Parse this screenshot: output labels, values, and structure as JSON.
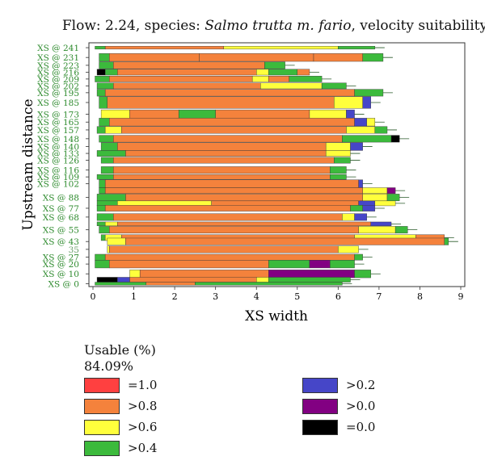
{
  "chart_data": {
    "type": "bar",
    "title_prefix": "Flow: 2.24, species: ",
    "title_species": "Salmo trutta m. fario",
    "title_suffix": ", velocity suitability",
    "xlabel": "XS width",
    "ylabel": "Upstream distance",
    "xlim": [
      0,
      9
    ],
    "x_ticks": [
      "0",
      "1",
      "2",
      "3",
      "4",
      "5",
      "6",
      "7",
      "8",
      "9"
    ],
    "y_tick_labels": [
      "XS @ 241",
      "XS @ 231",
      "XS @ 223",
      "XS @ 216",
      "XS @ 209",
      "XS @ 202",
      "XS @ 195",
      "XS @ 185",
      "XS @ 173",
      "XS @ 165",
      "XS @ 157",
      "XS @ 148",
      "XS @ 140",
      "XS @ 133",
      "XS @ 126",
      "XS @ 116",
      "XS @ 109",
      "XS @ 102",
      "XS @ 88",
      "XS @ 77",
      "XS @ 68",
      "XS @ 55",
      "XS @ 43",
      "35",
      "XS @ 27",
      "XS @ 20",
      "XS @ 10",
      "XS @ 0"
    ],
    "y_tick_values": [
      241,
      231,
      223,
      216,
      209,
      202,
      195,
      185,
      173,
      165,
      157,
      148,
      140,
      133,
      126,
      116,
      109,
      102,
      88,
      77,
      68,
      55,
      43,
      35,
      27,
      20,
      10,
      0
    ],
    "ylim": [
      -3,
      246
    ],
    "cross_sections": [
      {
        "y": 241,
        "h": 3,
        "segments": [
          [
            0.05,
            0.3,
            "green"
          ],
          [
            0.3,
            3.2,
            "orange"
          ],
          [
            3.2,
            6.0,
            "yellow"
          ],
          [
            6.0,
            6.9,
            "green"
          ]
        ]
      },
      {
        "y": 231,
        "h": 8,
        "segments": [
          [
            0.15,
            0.4,
            "green"
          ],
          [
            0.4,
            2.6,
            "orange"
          ],
          [
            2.6,
            5.4,
            "orange"
          ],
          [
            5.4,
            6.6,
            "orange"
          ],
          [
            6.6,
            7.1,
            "green"
          ]
        ]
      },
      {
        "y": 223,
        "h": 7,
        "segments": [
          [
            0.15,
            0.5,
            "green"
          ],
          [
            0.5,
            4.2,
            "orange"
          ],
          [
            4.2,
            4.7,
            "green"
          ]
        ]
      },
      {
        "y": 216,
        "h": 6,
        "segments": [
          [
            0.1,
            0.3,
            "black"
          ],
          [
            0.3,
            0.6,
            "green"
          ],
          [
            0.6,
            4.0,
            "orange"
          ],
          [
            4.0,
            4.3,
            "yellow"
          ],
          [
            4.3,
            5.0,
            "green"
          ],
          [
            5.0,
            5.3,
            "orange"
          ]
        ]
      },
      {
        "y": 209,
        "h": 6,
        "segments": [
          [
            0.05,
            0.4,
            "green"
          ],
          [
            0.4,
            3.9,
            "orange"
          ],
          [
            3.9,
            4.3,
            "yellow"
          ],
          [
            4.3,
            4.8,
            "orange"
          ],
          [
            4.8,
            5.6,
            "green"
          ]
        ]
      },
      {
        "y": 202,
        "h": 6,
        "segments": [
          [
            0.1,
            0.5,
            "green"
          ],
          [
            0.5,
            4.1,
            "orange"
          ],
          [
            4.1,
            5.6,
            "yellow"
          ],
          [
            5.6,
            6.2,
            "green"
          ]
        ]
      },
      {
        "y": 195,
        "h": 7,
        "segments": [
          [
            0.1,
            0.3,
            "green"
          ],
          [
            0.3,
            6.4,
            "orange"
          ],
          [
            6.4,
            7.1,
            "green"
          ]
        ]
      },
      {
        "y": 185,
        "h": 12,
        "segments": [
          [
            0.15,
            0.35,
            "green"
          ],
          [
            0.35,
            5.9,
            "orange"
          ],
          [
            5.9,
            6.6,
            "yellow"
          ],
          [
            6.6,
            6.8,
            "blue"
          ]
        ]
      },
      {
        "y": 173,
        "h": 9,
        "segments": [
          [
            0.2,
            0.9,
            "yellow"
          ],
          [
            0.9,
            2.1,
            "orange"
          ],
          [
            2.1,
            3.0,
            "green"
          ],
          [
            3.0,
            5.3,
            "orange"
          ],
          [
            5.3,
            6.2,
            "yellow"
          ],
          [
            6.2,
            6.4,
            "blue"
          ]
        ]
      },
      {
        "y": 165,
        "h": 8,
        "segments": [
          [
            0.15,
            0.4,
            "green"
          ],
          [
            0.4,
            6.4,
            "orange"
          ],
          [
            6.4,
            6.7,
            "blue"
          ],
          [
            6.7,
            6.9,
            "yellow"
          ]
        ]
      },
      {
        "y": 157,
        "h": 7,
        "segments": [
          [
            0.1,
            0.3,
            "green"
          ],
          [
            0.3,
            0.7,
            "yellow"
          ],
          [
            0.7,
            6.2,
            "orange"
          ],
          [
            6.2,
            6.9,
            "yellow"
          ],
          [
            6.9,
            7.2,
            "green"
          ]
        ]
      },
      {
        "y": 148,
        "h": 7,
        "segments": [
          [
            0.15,
            0.5,
            "green"
          ],
          [
            0.5,
            6.1,
            "orange"
          ],
          [
            6.1,
            7.3,
            "green"
          ],
          [
            7.3,
            7.5,
            "black"
          ]
        ]
      },
      {
        "y": 140,
        "h": 8,
        "segments": [
          [
            0.2,
            0.6,
            "green"
          ],
          [
            0.6,
            5.7,
            "orange"
          ],
          [
            5.7,
            6.3,
            "yellow"
          ],
          [
            6.3,
            6.6,
            "blue"
          ]
        ]
      },
      {
        "y": 133,
        "h": 6,
        "segments": [
          [
            0.1,
            0.8,
            "green"
          ],
          [
            0.8,
            5.7,
            "orange"
          ],
          [
            5.7,
            6.3,
            "yellow"
          ]
        ]
      },
      {
        "y": 126,
        "h": 6,
        "segments": [
          [
            0.2,
            0.5,
            "green"
          ],
          [
            0.5,
            5.9,
            "orange"
          ],
          [
            5.9,
            6.3,
            "green"
          ]
        ]
      },
      {
        "y": 116,
        "h": 7,
        "segments": [
          [
            0.2,
            0.5,
            "green"
          ],
          [
            0.5,
            5.8,
            "orange"
          ],
          [
            5.8,
            6.2,
            "green"
          ]
        ]
      },
      {
        "y": 109,
        "h": 5,
        "segments": [
          [
            0.1,
            0.5,
            "green"
          ],
          [
            0.5,
            5.8,
            "orange"
          ],
          [
            5.8,
            6.2,
            "green"
          ]
        ]
      },
      {
        "y": 102,
        "h": 8,
        "segments": [
          [
            0.15,
            0.3,
            "green"
          ],
          [
            0.3,
            6.5,
            "orange"
          ],
          [
            6.5,
            6.6,
            "blue"
          ]
        ]
      },
      {
        "y": 95,
        "h": 6,
        "segments": [
          [
            0.15,
            0.3,
            "green"
          ],
          [
            0.3,
            6.6,
            "orange"
          ],
          [
            6.6,
            7.2,
            "yellow"
          ],
          [
            7.2,
            7.4,
            "purple"
          ]
        ]
      },
      {
        "y": 88,
        "h": 7,
        "segments": [
          [
            0.1,
            0.8,
            "green"
          ],
          [
            0.8,
            6.6,
            "orange"
          ],
          [
            6.6,
            7.2,
            "yellow"
          ],
          [
            7.2,
            7.5,
            "green"
          ]
        ]
      },
      {
        "y": 82,
        "h": 5,
        "segments": [
          [
            0.1,
            0.6,
            "green"
          ],
          [
            0.6,
            2.9,
            "yellow"
          ],
          [
            2.9,
            6.5,
            "orange"
          ],
          [
            6.5,
            6.9,
            "blue"
          ],
          [
            6.9,
            7.4,
            "yellow"
          ]
        ]
      },
      {
        "y": 77,
        "h": 6,
        "segments": [
          [
            0.1,
            0.3,
            "green"
          ],
          [
            0.3,
            6.3,
            "orange"
          ],
          [
            6.3,
            6.6,
            "green"
          ],
          [
            6.6,
            6.9,
            "blue"
          ]
        ]
      },
      {
        "y": 68,
        "h": 7,
        "segments": [
          [
            0.1,
            0.5,
            "green"
          ],
          [
            0.5,
            6.1,
            "orange"
          ],
          [
            6.1,
            6.4,
            "yellow"
          ],
          [
            6.4,
            6.7,
            "blue"
          ]
        ]
      },
      {
        "y": 61,
        "h": 4,
        "segments": [
          [
            0.1,
            0.3,
            "green"
          ],
          [
            0.3,
            0.6,
            "yellow"
          ],
          [
            0.6,
            6.8,
            "orange"
          ],
          [
            6.8,
            7.3,
            "blue"
          ]
        ]
      },
      {
        "y": 55,
        "h": 7,
        "segments": [
          [
            0.15,
            0.4,
            "green"
          ],
          [
            0.4,
            6.5,
            "orange"
          ],
          [
            6.5,
            7.4,
            "yellow"
          ],
          [
            7.4,
            7.7,
            "green"
          ]
        ]
      },
      {
        "y": 47,
        "h": 6,
        "segments": [
          [
            0.2,
            0.3,
            "green"
          ],
          [
            0.3,
            0.7,
            "yellow"
          ],
          [
            0.7,
            6.4,
            "orange"
          ],
          [
            6.4,
            7.9,
            "yellow"
          ],
          [
            7.9,
            8.6,
            "orange"
          ]
        ]
      },
      {
        "y": 43,
        "h": 7,
        "segments": [
          [
            0.35,
            0.8,
            "yellow"
          ],
          [
            0.8,
            8.6,
            "orange"
          ],
          [
            8.6,
            8.7,
            "green"
          ]
        ]
      },
      {
        "y": 35,
        "h": 7,
        "segments": [
          [
            0.35,
            0.4,
            "yellow"
          ],
          [
            0.4,
            6.0,
            "orange"
          ],
          [
            6.0,
            6.5,
            "yellow"
          ]
        ]
      },
      {
        "y": 27,
        "h": 6,
        "segments": [
          [
            0.05,
            0.3,
            "green"
          ],
          [
            0.3,
            6.4,
            "orange"
          ],
          [
            6.4,
            6.6,
            "green"
          ]
        ]
      },
      {
        "y": 20,
        "h": 8,
        "segments": [
          [
            0.05,
            0.4,
            "green"
          ],
          [
            0.4,
            4.3,
            "orange"
          ],
          [
            4.3,
            5.3,
            "green"
          ],
          [
            5.3,
            5.8,
            "purple"
          ],
          [
            5.8,
            6.4,
            "green"
          ]
        ]
      },
      {
        "y": 10,
        "h": 8,
        "segments": [
          [
            0.9,
            1.15,
            "yellow"
          ],
          [
            1.15,
            4.3,
            "orange"
          ],
          [
            4.3,
            6.4,
            "purple"
          ],
          [
            6.4,
            6.8,
            "green"
          ]
        ]
      },
      {
        "y": 4,
        "h": 5,
        "segments": [
          [
            0.1,
            0.6,
            "black"
          ],
          [
            0.6,
            0.9,
            "blue"
          ],
          [
            0.9,
            4.0,
            "orange"
          ],
          [
            4.0,
            4.3,
            "yellow"
          ],
          [
            4.3,
            6.3,
            "green"
          ]
        ]
      },
      {
        "y": 0,
        "h": 3,
        "segments": [
          [
            0.05,
            1.3,
            "green"
          ],
          [
            1.3,
            2.5,
            "orange"
          ],
          [
            2.5,
            6.1,
            "green"
          ]
        ]
      }
    ],
    "colors": {
      "red": "#ff4040",
      "orange": "#f4823c",
      "yellow": "#ffff3c",
      "green": "#3cba3c",
      "blue": "#4646c8",
      "purple": "#820082",
      "black": "#000000"
    },
    "legend": {
      "title": "Usable (%)",
      "usable_value": "84.09%",
      "items": [
        {
          "label": "=1.0",
          "color": "#ff4040"
        },
        {
          "label": ">0.8",
          "color": "#f4823c"
        },
        {
          "label": ">0.6",
          "color": "#ffff3c"
        },
        {
          "label": ">0.4",
          "color": "#3cba3c"
        },
        {
          "label": ">0.2",
          "color": "#4646c8"
        },
        {
          "label": ">0.0",
          "color": "#820082"
        },
        {
          "label": "=0.0",
          "color": "#000000"
        }
      ]
    },
    "legend_placement": "bottom",
    "grid": false
  }
}
